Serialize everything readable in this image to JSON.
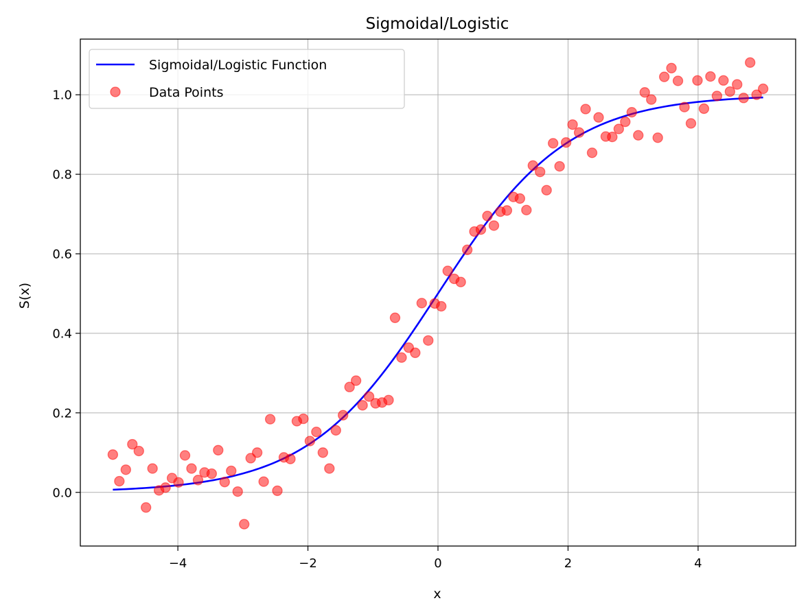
{
  "chart_data": {
    "type": "scatter",
    "title": "Sigmoidal/Logistic",
    "xlabel": "x",
    "ylabel": "S(x)",
    "xlim": [
      -5.5,
      5.5
    ],
    "ylim": [
      -0.135,
      1.14
    ],
    "xticks": [
      -4,
      -2,
      0,
      2,
      4
    ],
    "xtick_labels": [
      "−4",
      "−2",
      "0",
      "2",
      "4"
    ],
    "yticks": [
      0.0,
      0.2,
      0.4,
      0.6,
      0.8,
      1.0
    ],
    "ytick_labels": [
      "0.0",
      "0.2",
      "0.4",
      "0.6",
      "0.8",
      "1.0"
    ],
    "grid": true,
    "legend_position": "top-left",
    "series": [
      {
        "name": "Sigmoidal/Logistic Function",
        "kind": "line",
        "color": "#0000ff",
        "function": "1/(1+exp(-x))",
        "x_range": [
          -5,
          5
        ]
      },
      {
        "name": "Data Points",
        "kind": "scatter",
        "color": "#ff0000",
        "alpha": 0.5,
        "x": [
          -5.0,
          -4.9,
          -4.8,
          -4.7,
          -4.6,
          -4.49,
          -4.39,
          -4.29,
          -4.19,
          -4.09,
          -3.99,
          -3.89,
          -3.79,
          -3.69,
          -3.59,
          -3.48,
          -3.38,
          -3.28,
          -3.18,
          -3.08,
          -2.98,
          -2.88,
          -2.78,
          -2.68,
          -2.58,
          -2.47,
          -2.37,
          -2.27,
          -2.17,
          -2.07,
          -1.97,
          -1.87,
          -1.77,
          -1.67,
          -1.57,
          -1.46,
          -1.36,
          -1.26,
          -1.16,
          -1.06,
          -0.96,
          -0.86,
          -0.76,
          -0.66,
          -0.56,
          -0.45,
          -0.35,
          -0.25,
          -0.15,
          -0.05,
          0.05,
          0.15,
          0.25,
          0.35,
          0.45,
          0.56,
          0.66,
          0.76,
          0.86,
          0.96,
          1.06,
          1.16,
          1.26,
          1.36,
          1.46,
          1.57,
          1.67,
          1.77,
          1.87,
          1.97,
          2.07,
          2.17,
          2.27,
          2.37,
          2.47,
          2.58,
          2.68,
          2.78,
          2.88,
          2.98,
          3.08,
          3.18,
          3.28,
          3.38,
          3.48,
          3.59,
          3.69,
          3.79,
          3.89,
          3.99,
          4.09,
          4.19,
          4.29,
          4.39,
          4.49,
          4.6,
          4.7,
          4.8,
          4.9,
          5.0
        ],
        "y": [
          0.095,
          0.028,
          0.057,
          0.121,
          0.104,
          -0.038,
          0.06,
          0.005,
          0.012,
          0.036,
          0.025,
          0.093,
          0.06,
          0.031,
          0.05,
          0.047,
          0.106,
          0.026,
          0.054,
          0.002,
          -0.08,
          0.086,
          0.1,
          0.027,
          0.184,
          0.004,
          0.088,
          0.084,
          0.179,
          0.185,
          0.129,
          0.152,
          0.1,
          0.06,
          0.156,
          0.194,
          0.265,
          0.281,
          0.219,
          0.241,
          0.224,
          0.226,
          0.232,
          0.439,
          0.339,
          0.364,
          0.351,
          0.476,
          0.382,
          0.475,
          0.468,
          0.557,
          0.537,
          0.529,
          0.61,
          0.656,
          0.661,
          0.695,
          0.671,
          0.706,
          0.709,
          0.743,
          0.739,
          0.71,
          0.822,
          0.806,
          0.76,
          0.878,
          0.82,
          0.88,
          0.925,
          0.905,
          0.964,
          0.854,
          0.943,
          0.895,
          0.894,
          0.914,
          0.932,
          0.956,
          0.898,
          1.006,
          0.988,
          0.892,
          1.045,
          1.067,
          1.035,
          0.969,
          0.928,
          1.036,
          0.965,
          1.046,
          0.997,
          1.036,
          1.008,
          1.026,
          0.992,
          1.081,
          1.0,
          1.015
        ]
      }
    ]
  }
}
